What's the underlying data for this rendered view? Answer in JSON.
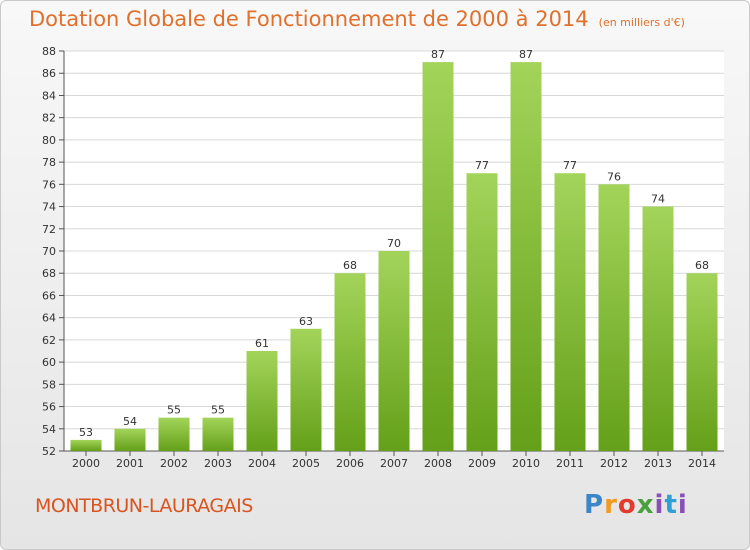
{
  "title": "Dotation Globale de Fonctionnement de 2000 à 2014",
  "subtitle": "(en milliers d'€)",
  "commune": "MONTBRUN-LAURAGAIS",
  "logo_text": "Proxiti",
  "colors": {
    "title": "#e0702b",
    "bar_light": "#a3d45a",
    "bar_dark": "#64a019",
    "commune": "#d9541f"
  },
  "chart_data": {
    "type": "bar",
    "title": "Dotation Globale de Fonctionnement de 2000 à 2014",
    "subtitle": "(en milliers d'€)",
    "categories": [
      "2000",
      "2001",
      "2002",
      "2003",
      "2004",
      "2005",
      "2006",
      "2007",
      "2008",
      "2009",
      "2010",
      "2011",
      "2012",
      "2013",
      "2014"
    ],
    "values": [
      53,
      54,
      55,
      55,
      61,
      63,
      68,
      70,
      87,
      77,
      87,
      77,
      76,
      74,
      68
    ],
    "ylim": [
      52,
      88
    ],
    "yticks": [
      52,
      54,
      56,
      58,
      60,
      62,
      64,
      66,
      68,
      70,
      72,
      74,
      76,
      78,
      80,
      82,
      84,
      86,
      88
    ],
    "xlabel": "",
    "ylabel": "",
    "grid": true
  }
}
